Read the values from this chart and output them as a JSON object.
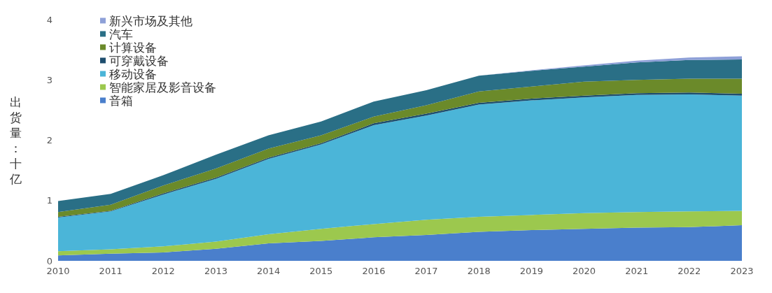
{
  "chart_data": {
    "type": "area",
    "stacked": true,
    "ylabel": "出货量：十亿",
    "categories": [
      "2010",
      "2011",
      "2012",
      "2013",
      "2014",
      "2015",
      "2016",
      "2017",
      "2018",
      "2019",
      "2020",
      "2021",
      "2022",
      "2023"
    ],
    "ylim": [
      0,
      4
    ],
    "yticks": [
      0,
      1,
      2,
      3,
      4
    ],
    "grid": false,
    "legend": "top left",
    "series": [
      {
        "name": "音箱",
        "color": "#4a7fcc",
        "values": [
          0.09,
          0.12,
          0.14,
          0.2,
          0.29,
          0.33,
          0.39,
          0.43,
          0.48,
          0.51,
          0.53,
          0.55,
          0.56,
          0.59
        ]
      },
      {
        "name": "智能家居及影音设备",
        "color": "#9cc84e",
        "values": [
          0.07,
          0.07,
          0.1,
          0.12,
          0.15,
          0.2,
          0.22,
          0.25,
          0.25,
          0.25,
          0.26,
          0.26,
          0.26,
          0.24
        ]
      },
      {
        "name": "移动设备",
        "color": "#4bb5d8",
        "values": [
          0.56,
          0.63,
          0.86,
          1.04,
          1.25,
          1.4,
          1.64,
          1.73,
          1.86,
          1.9,
          1.92,
          1.94,
          1.94,
          1.91
        ]
      },
      {
        "name": "可穿戴设备",
        "color": "#1e4e6e",
        "values": [
          0.01,
          0.01,
          0.02,
          0.02,
          0.02,
          0.02,
          0.03,
          0.03,
          0.03,
          0.03,
          0.03,
          0.03,
          0.03,
          0.03
        ]
      },
      {
        "name": "计算设备",
        "color": "#6b8a2a",
        "values": [
          0.08,
          0.1,
          0.13,
          0.15,
          0.15,
          0.13,
          0.11,
          0.14,
          0.19,
          0.2,
          0.23,
          0.22,
          0.23,
          0.25
        ]
      },
      {
        "name": "汽车",
        "color": "#2a6f86",
        "values": [
          0.18,
          0.18,
          0.17,
          0.23,
          0.22,
          0.23,
          0.25,
          0.25,
          0.26,
          0.26,
          0.25,
          0.29,
          0.31,
          0.32
        ]
      },
      {
        "name": "新兴市场及其他",
        "color": "#8ea0d8",
        "values": [
          0,
          0,
          0,
          0,
          0,
          0,
          0,
          0,
          0,
          0.01,
          0.02,
          0.03,
          0.04,
          0.05
        ]
      }
    ]
  }
}
